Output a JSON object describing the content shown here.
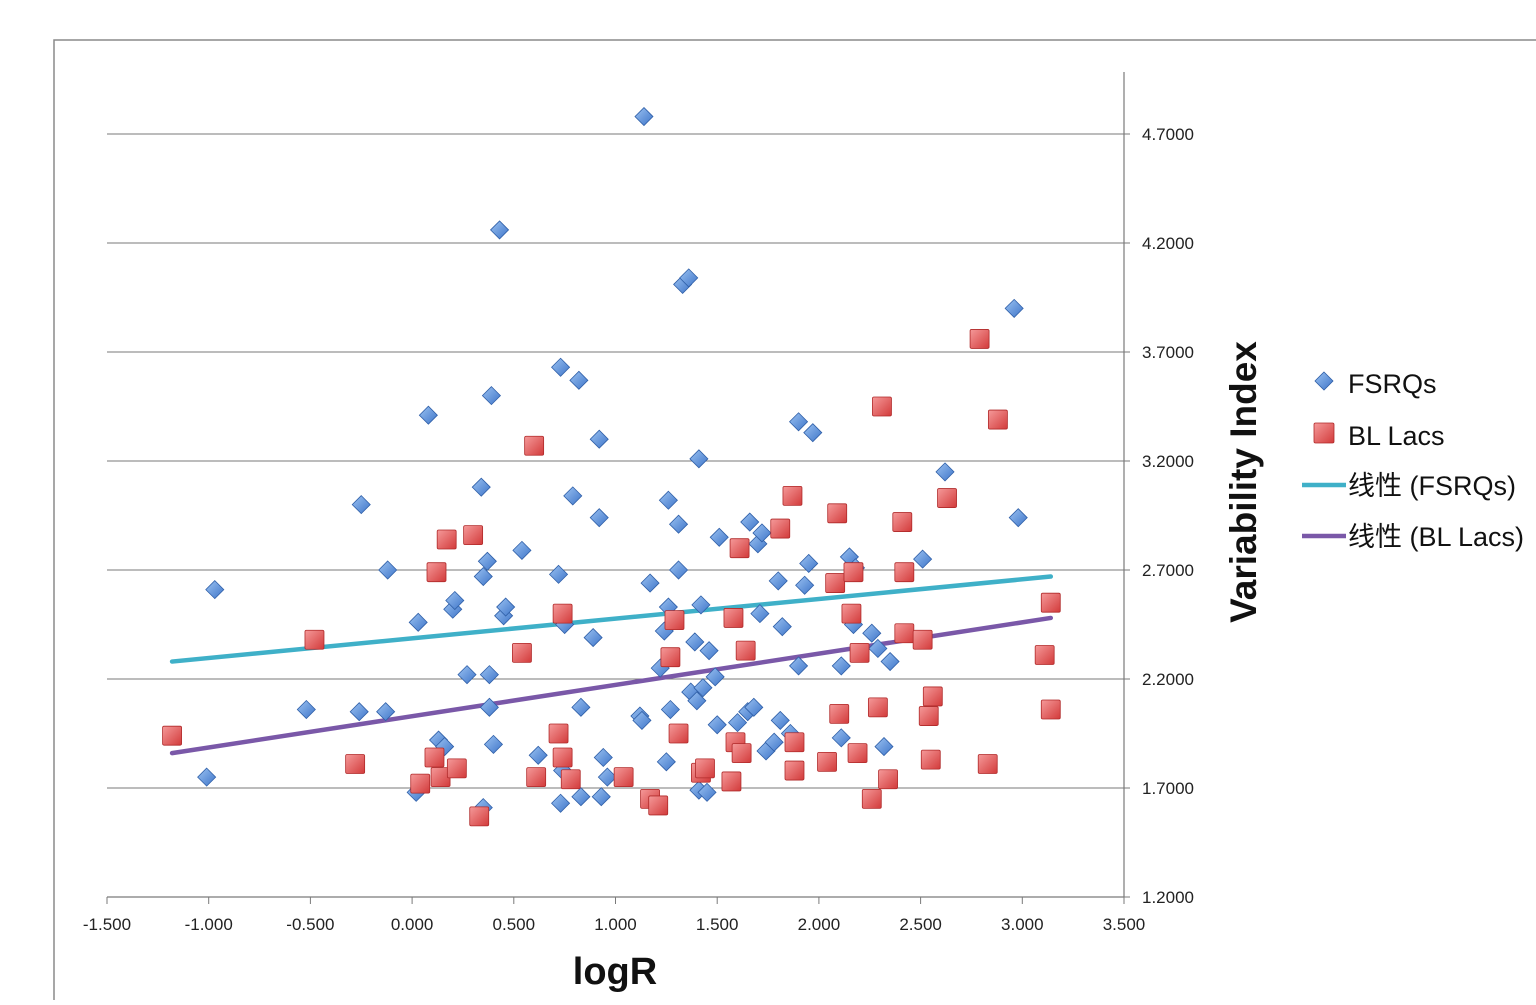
{
  "chart_data": {
    "type": "scatter",
    "title": "",
    "xlabel": "logR",
    "ylabel": "Variability Index",
    "xlim": [
      -1.5,
      3.5
    ],
    "ylim": [
      1.2,
      4.9
    ],
    "x_ticks": [
      "-1.500",
      "-1.000",
      "-0.500",
      "0.000",
      "0.500",
      "1.000",
      "1.500",
      "2.000",
      "2.500",
      "3.000",
      "3.500"
    ],
    "y_ticks": [
      "1.2000",
      "1.7000",
      "2.2000",
      "2.7000",
      "3.2000",
      "3.7000",
      "4.2000",
      "4.7000"
    ],
    "grid": "horizontal",
    "legend_position": "right",
    "colors": {
      "fsrq": "#4f86d8",
      "bllac": "#e04848",
      "fsrq_trend": "#3fb0c8",
      "bllac_trend": "#7a58a8"
    },
    "series": [
      {
        "name": "FSRQs",
        "marker": "diamond",
        "points": [
          [
            -1.01,
            1.75
          ],
          [
            -0.97,
            2.61
          ],
          [
            -0.52,
            2.06
          ],
          [
            -0.26,
            2.05
          ],
          [
            -0.25,
            3.0
          ],
          [
            -0.13,
            2.05
          ],
          [
            -0.12,
            2.7
          ],
          [
            0.02,
            1.68
          ],
          [
            0.03,
            2.46
          ],
          [
            0.08,
            3.41
          ],
          [
            0.13,
            1.92
          ],
          [
            0.16,
            1.89
          ],
          [
            0.2,
            2.52
          ],
          [
            0.21,
            2.56
          ],
          [
            0.27,
            2.22
          ],
          [
            0.34,
            3.08
          ],
          [
            0.35,
            1.61
          ],
          [
            0.35,
            2.67
          ],
          [
            0.37,
            2.74
          ],
          [
            0.38,
            2.07
          ],
          [
            0.38,
            2.22
          ],
          [
            0.39,
            3.5
          ],
          [
            0.4,
            1.9
          ],
          [
            0.43,
            4.26
          ],
          [
            0.45,
            2.49
          ],
          [
            0.46,
            2.53
          ],
          [
            0.54,
            2.79
          ],
          [
            0.62,
            1.85
          ],
          [
            0.72,
            2.68
          ],
          [
            0.73,
            1.63
          ],
          [
            0.73,
            3.63
          ],
          [
            0.74,
            1.78
          ],
          [
            0.75,
            2.45
          ],
          [
            0.79,
            3.04
          ],
          [
            0.82,
            3.57
          ],
          [
            0.83,
            1.66
          ],
          [
            0.83,
            2.07
          ],
          [
            0.89,
            2.39
          ],
          [
            0.92,
            3.3
          ],
          [
            0.92,
            2.94
          ],
          [
            0.93,
            1.66
          ],
          [
            0.94,
            1.84
          ],
          [
            0.96,
            1.75
          ],
          [
            1.12,
            2.03
          ],
          [
            1.13,
            2.01
          ],
          [
            1.14,
            4.78
          ],
          [
            1.17,
            2.64
          ],
          [
            1.22,
            2.25
          ],
          [
            1.24,
            2.42
          ],
          [
            1.25,
            1.82
          ],
          [
            1.26,
            3.02
          ],
          [
            1.26,
            2.53
          ],
          [
            1.27,
            2.06
          ],
          [
            1.31,
            2.7
          ],
          [
            1.31,
            2.91
          ],
          [
            1.33,
            4.01
          ],
          [
            1.36,
            4.04
          ],
          [
            1.37,
            2.14
          ],
          [
            1.39,
            2.37
          ],
          [
            1.4,
            2.1
          ],
          [
            1.41,
            1.69
          ],
          [
            1.41,
            3.21
          ],
          [
            1.42,
            2.54
          ],
          [
            1.43,
            2.16
          ],
          [
            1.45,
            1.68
          ],
          [
            1.46,
            2.33
          ],
          [
            1.49,
            2.21
          ],
          [
            1.5,
            1.99
          ],
          [
            1.51,
            2.85
          ],
          [
            1.6,
            2.0
          ],
          [
            1.65,
            2.05
          ],
          [
            1.66,
            2.92
          ],
          [
            1.68,
            2.07
          ],
          [
            1.7,
            2.82
          ],
          [
            1.71,
            2.5
          ],
          [
            1.72,
            2.87
          ],
          [
            1.74,
            1.87
          ],
          [
            1.78,
            1.91
          ],
          [
            1.8,
            2.65
          ],
          [
            1.81,
            2.01
          ],
          [
            1.82,
            2.44
          ],
          [
            1.86,
            1.95
          ],
          [
            1.9,
            2.26
          ],
          [
            1.9,
            3.38
          ],
          [
            1.93,
            2.63
          ],
          [
            1.95,
            2.73
          ],
          [
            1.97,
            3.33
          ],
          [
            2.11,
            1.93
          ],
          [
            2.11,
            2.26
          ],
          [
            2.15,
            2.76
          ],
          [
            2.17,
            2.45
          ],
          [
            2.18,
            2.71
          ],
          [
            2.26,
            2.41
          ],
          [
            2.29,
            2.34
          ],
          [
            2.32,
            1.89
          ],
          [
            2.35,
            2.28
          ],
          [
            2.51,
            2.75
          ],
          [
            2.62,
            3.15
          ],
          [
            2.96,
            3.9
          ],
          [
            2.98,
            2.94
          ]
        ]
      },
      {
        "name": "BL Lacs",
        "marker": "square",
        "points": [
          [
            -1.18,
            1.94
          ],
          [
            -0.48,
            2.38
          ],
          [
            -0.28,
            1.81
          ],
          [
            0.04,
            1.72
          ],
          [
            0.11,
            1.84
          ],
          [
            0.12,
            2.69
          ],
          [
            0.14,
            1.75
          ],
          [
            0.17,
            2.84
          ],
          [
            0.22,
            1.79
          ],
          [
            0.3,
            2.86
          ],
          [
            0.33,
            1.57
          ],
          [
            0.54,
            2.32
          ],
          [
            0.6,
            3.27
          ],
          [
            0.61,
            1.75
          ],
          [
            0.72,
            1.95
          ],
          [
            0.74,
            1.84
          ],
          [
            0.74,
            2.5
          ],
          [
            0.78,
            1.74
          ],
          [
            1.04,
            1.75
          ],
          [
            1.17,
            1.65
          ],
          [
            1.21,
            1.62
          ],
          [
            1.27,
            2.3
          ],
          [
            1.29,
            2.47
          ],
          [
            1.31,
            1.95
          ],
          [
            1.42,
            1.77
          ],
          [
            1.44,
            1.79
          ],
          [
            1.57,
            1.73
          ],
          [
            1.58,
            2.48
          ],
          [
            1.59,
            1.91
          ],
          [
            1.61,
            2.8
          ],
          [
            1.62,
            1.86
          ],
          [
            1.64,
            2.33
          ],
          [
            1.81,
            2.89
          ],
          [
            1.87,
            3.04
          ],
          [
            1.88,
            1.78
          ],
          [
            1.88,
            1.91
          ],
          [
            2.04,
            1.82
          ],
          [
            2.08,
            2.64
          ],
          [
            2.09,
            2.96
          ],
          [
            2.1,
            2.04
          ],
          [
            2.16,
            2.5
          ],
          [
            2.17,
            2.69
          ],
          [
            2.19,
            1.86
          ],
          [
            2.2,
            2.32
          ],
          [
            2.26,
            1.65
          ],
          [
            2.29,
            2.07
          ],
          [
            2.31,
            3.45
          ],
          [
            2.34,
            1.74
          ],
          [
            2.41,
            2.92
          ],
          [
            2.42,
            2.41
          ],
          [
            2.42,
            2.69
          ],
          [
            2.51,
            2.38
          ],
          [
            2.54,
            2.03
          ],
          [
            2.55,
            1.83
          ],
          [
            2.56,
            2.12
          ],
          [
            2.63,
            3.03
          ],
          [
            2.79,
            3.76
          ],
          [
            2.83,
            1.81
          ],
          [
            2.88,
            3.39
          ],
          [
            3.11,
            2.31
          ],
          [
            3.14,
            2.06
          ],
          [
            3.14,
            2.55
          ]
        ]
      }
    ],
    "trendlines": [
      {
        "name": "线性 (FSRQs)",
        "x": [
          -1.18,
          3.14
        ],
        "y": [
          2.28,
          2.67
        ]
      },
      {
        "name": "线性 (BL Lacs)",
        "x": [
          -1.18,
          3.14
        ],
        "y": [
          1.86,
          2.48
        ]
      }
    ]
  }
}
